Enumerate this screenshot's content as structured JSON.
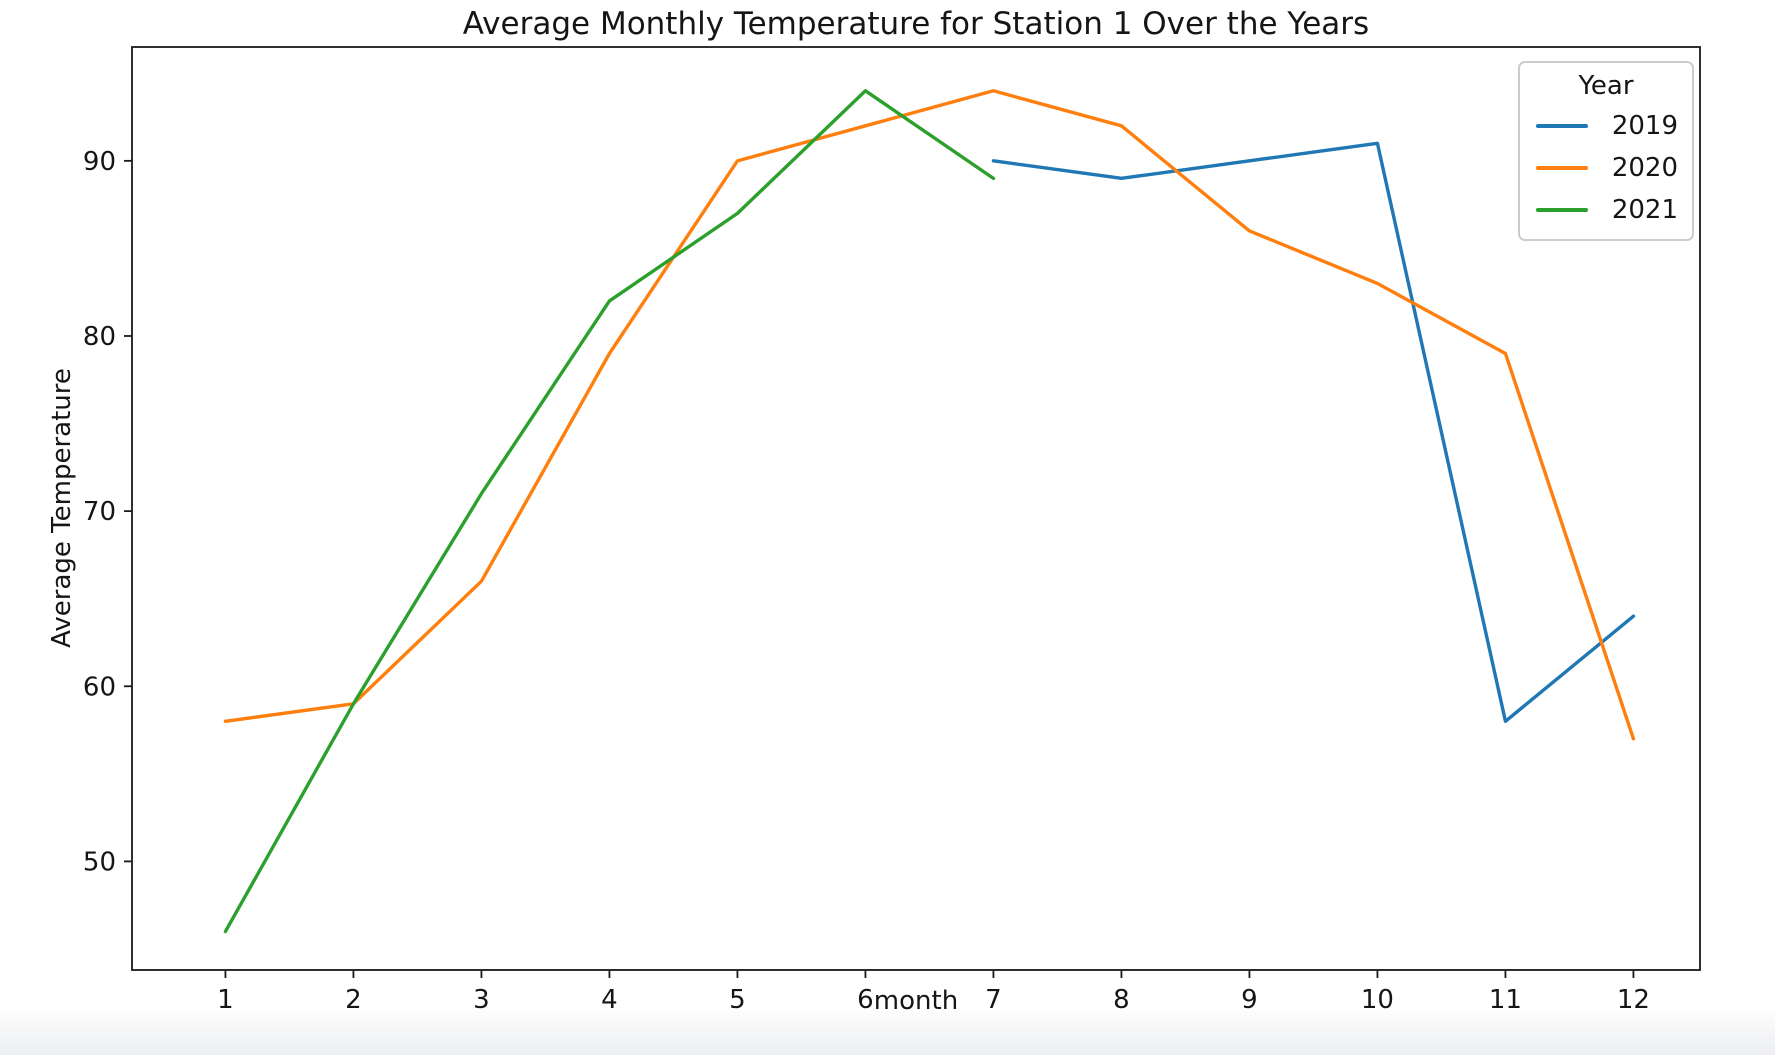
{
  "chart_data": {
    "type": "line",
    "title": "Average Monthly Temperature for Station 1 Over the Years",
    "xlabel": "month",
    "ylabel": "Average Temperature",
    "x_ticks": [
      1,
      2,
      3,
      4,
      5,
      6,
      7,
      8,
      9,
      10,
      11,
      12
    ],
    "y_ticks": [
      50,
      60,
      70,
      80,
      90
    ],
    "xlim": [
      0.27,
      12.52
    ],
    "ylim": [
      43.8,
      96.5
    ],
    "grid": false,
    "legend": {
      "title": "Year",
      "position": "upper right"
    },
    "series": [
      {
        "name": "2019",
        "color": "#1f77b4",
        "x": [
          7,
          8,
          9,
          10,
          11,
          12
        ],
        "values": [
          90,
          89,
          90,
          91,
          58,
          64
        ]
      },
      {
        "name": "2020",
        "color": "#ff7f0e",
        "x": [
          1,
          2,
          3,
          4,
          5,
          6,
          7,
          8,
          9,
          10,
          11,
          12
        ],
        "values": [
          58,
          59,
          66,
          79,
          90,
          92,
          94,
          92,
          86,
          83,
          79,
          57
        ]
      },
      {
        "name": "2021",
        "color": "#2ca02c",
        "x": [
          1,
          2,
          3,
          4,
          5,
          6,
          7
        ],
        "values": [
          46,
          59,
          71,
          82,
          87,
          94,
          89
        ]
      }
    ]
  }
}
